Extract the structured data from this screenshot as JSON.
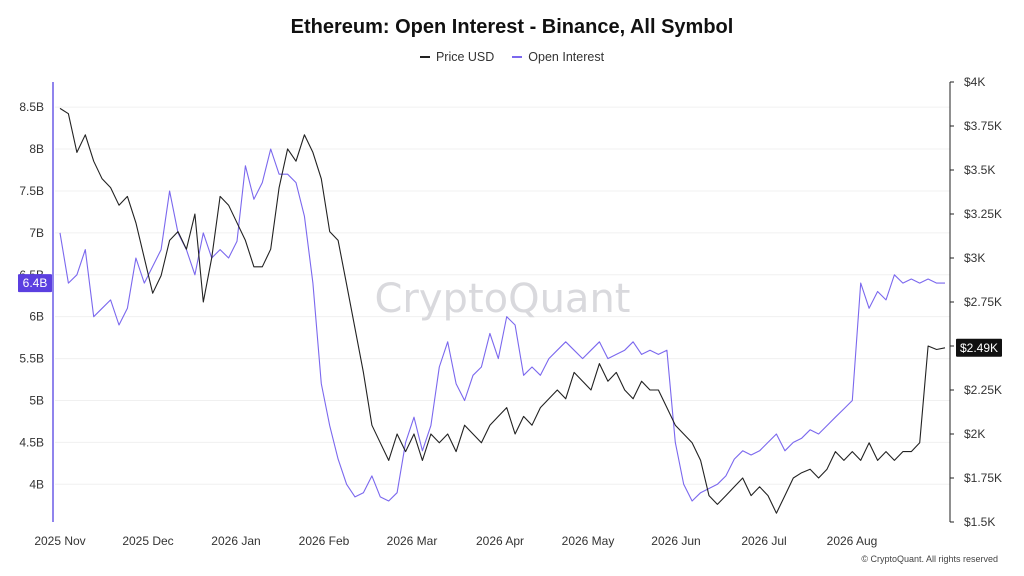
{
  "chart_data": {
    "type": "line",
    "title": "Ethereum: Open Interest - Binance, All Symbol",
    "series": [
      {
        "name": "Price USD",
        "color": "#222222",
        "axis": "right",
        "values": [
          3850,
          3820,
          3600,
          3700,
          3550,
          3450,
          3400,
          3300,
          3350,
          3200,
          3000,
          2800,
          2900,
          3100,
          3150,
          3050,
          3250,
          2750,
          3000,
          3350,
          3300,
          3200,
          3100,
          2950,
          2950,
          3050,
          3400,
          3620,
          3550,
          3700,
          3600,
          3450,
          3150,
          3100,
          2850,
          2600,
          2350,
          2050,
          1950,
          1850,
          2000,
          1900,
          2000,
          1850,
          2000,
          1950,
          2000,
          1900,
          2050,
          2000,
          1950,
          2050,
          2100,
          2150,
          2000,
          2100,
          2050,
          2150,
          2200,
          2250,
          2200,
          2350,
          2300,
          2250,
          2400,
          2300,
          2350,
          2250,
          2200,
          2300,
          2250,
          2250,
          2150,
          2050,
          2000,
          1950,
          1850,
          1650,
          1600,
          1650,
          1700,
          1750,
          1650,
          1700,
          1650,
          1550,
          1650,
          1750,
          1780,
          1800,
          1750,
          1800,
          1900,
          1850,
          1900,
          1850,
          1950,
          1850,
          1900,
          1850,
          1900,
          1900,
          1950,
          2500,
          2480,
          2490
        ]
      },
      {
        "name": "Open Interest",
        "color": "#7b68ee",
        "axis": "left",
        "values": [
          7000,
          6400,
          6500,
          6800,
          6000,
          6100,
          6200,
          5900,
          6100,
          6700,
          6400,
          6600,
          6800,
          7500,
          7000,
          6800,
          6500,
          7000,
          6700,
          6800,
          6700,
          6900,
          7800,
          7400,
          7600,
          8000,
          7700,
          7700,
          7600,
          7200,
          6400,
          5200,
          4700,
          4300,
          4000,
          3850,
          3900,
          4100,
          3850,
          3800,
          3900,
          4500,
          4800,
          4400,
          4700,
          5400,
          5700,
          5200,
          5000,
          5300,
          5400,
          5800,
          5500,
          6000,
          5900,
          5300,
          5400,
          5300,
          5500,
          5600,
          5700,
          5600,
          5500,
          5600,
          5700,
          5500,
          5550,
          5600,
          5700,
          5550,
          5600,
          5550,
          5600,
          4500,
          4000,
          3800,
          3900,
          3950,
          4000,
          4100,
          4300,
          4400,
          4350,
          4400,
          4500,
          4600,
          4400,
          4500,
          4550,
          4650,
          4600,
          4700,
          4800,
          4900,
          5000,
          6400,
          6100,
          6300,
          6200,
          6500,
          6400,
          6450,
          6400,
          6450,
          6400,
          6400
        ]
      }
    ],
    "x_labels": [
      "2025 Nov",
      "2025 Dec",
      "2026 Jan",
      "2026 Feb",
      "2026 Mar",
      "2026 Apr",
      "2026 May",
      "2026 Jun",
      "2026 Jul",
      "2026 Aug"
    ],
    "y_left_labels": [
      "8.5B",
      "8B",
      "7.5B",
      "7B",
      "6.5B",
      "6B",
      "5.5B",
      "5B",
      "4.5B",
      "4B"
    ],
    "y_left_ticks": [
      8500,
      8000,
      7500,
      7000,
      6500,
      6000,
      5500,
      5000,
      4500,
      4000
    ],
    "y_left_range": [
      3550,
      8800
    ],
    "y_right_labels": [
      "$4K",
      "$3.75K",
      "$3.5K",
      "$3.25K",
      "$3K",
      "$2.75K",
      "$2.5K",
      "$2.25K",
      "$2K",
      "$1.75K",
      "$1.5K"
    ],
    "y_right_ticks": [
      4000,
      3750,
      3500,
      3250,
      3000,
      2750,
      2500,
      2250,
      2000,
      1750,
      1500
    ],
    "y_right_range": [
      1500,
      4000
    ],
    "current_left_label": "6.4B",
    "current_left_value": 6400,
    "current_right_label": "$2.49K",
    "current_right_value": 2490,
    "watermark": "CryptoQuant",
    "copyright": "© CryptoQuant. All rights reserved",
    "grid": true,
    "legend_position": "top-center"
  }
}
